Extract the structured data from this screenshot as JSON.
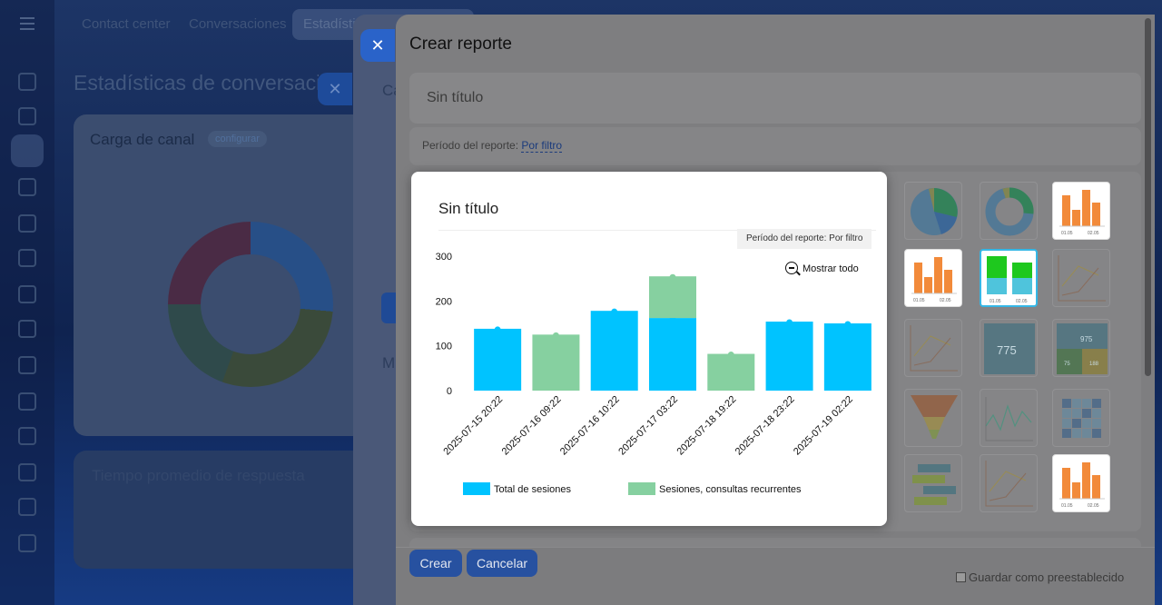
{
  "nav": {
    "tabs": [
      "Contact center",
      "Conversaciones",
      "Estadísticas"
    ],
    "left_icons": [
      "refresh-icon",
      "checklist-icon",
      "filter-icon",
      "inbox-icon",
      "bar-chart-icon",
      "cart-icon",
      "id-card-icon",
      "calendar-icon",
      "briefcase-icon",
      "check-shield-icon",
      "edit-doc-icon",
      "pen-icon",
      "settings-icon",
      "arrows-icon"
    ]
  },
  "background": {
    "page_title": "Estadísticas de conversaciones",
    "card1_title": "Carga de canal",
    "card1_config": "configurar",
    "card2_title": "Tiempo promedio de respuesta",
    "panel_fragment_1": "Ca",
    "panel_fragment_2": "M"
  },
  "modal": {
    "title": "Crear reporte",
    "report_name_placeholder": "Sin título",
    "period_label": "Período del reporte:",
    "period_value": "Por filtro",
    "create_button": "Crear",
    "cancel_button": "Cancelar",
    "save_preset_label": "Guardar como preestablecido",
    "widget_thumbs": [
      {
        "kind": "pie"
      },
      {
        "kind": "donut"
      },
      {
        "kind": "bar-orange",
        "labels": [
          "01.05",
          "02.05"
        ]
      },
      {
        "kind": "bar-orange",
        "labels": [
          "01.05",
          "02.05"
        ]
      },
      {
        "kind": "stacked-bar",
        "labels": [
          "01.05",
          "02.05"
        ]
      },
      {
        "kind": "line-gray"
      },
      {
        "kind": "line-gray"
      },
      {
        "kind": "number-tile",
        "value": "775"
      },
      {
        "kind": "multi-number-tile",
        "value": "975",
        "sub": [
          "75",
          "188"
        ]
      },
      {
        "kind": "funnel"
      },
      {
        "kind": "line-green"
      },
      {
        "kind": "heatmap"
      },
      {
        "kind": "horizontal-bars"
      },
      {
        "kind": "line-gray"
      },
      {
        "kind": "bar-orange",
        "labels": [
          "01.05",
          "02.05"
        ]
      }
    ]
  },
  "preview": {
    "title": "Sin título",
    "period_badge": "Período del reporte: Por filtro",
    "zoom_label": "Mostrar todo"
  },
  "chart_data": {
    "type": "bar",
    "categories": [
      "2025-07-15 20:22",
      "2025-07-16 09:22",
      "2025-07-16 10:22",
      "2025-07-17 03:22",
      "2025-07-18 19:22",
      "2025-07-18 23:22",
      "2025-07-19 02:22"
    ],
    "series": [
      {
        "name": "Total de sesiones",
        "color": "#00c3ff",
        "values": [
          138,
          0,
          178,
          162,
          0,
          154,
          150
        ]
      },
      {
        "name": "Sesiones, consultas recurrentes",
        "color": "#86d0a0",
        "values": [
          0,
          125,
          0,
          93,
          82,
          0,
          0
        ]
      }
    ],
    "stacked": true,
    "yticks": [
      0,
      100,
      200,
      300
    ],
    "ylim": [
      0,
      300
    ],
    "legend_position": "bottom"
  }
}
